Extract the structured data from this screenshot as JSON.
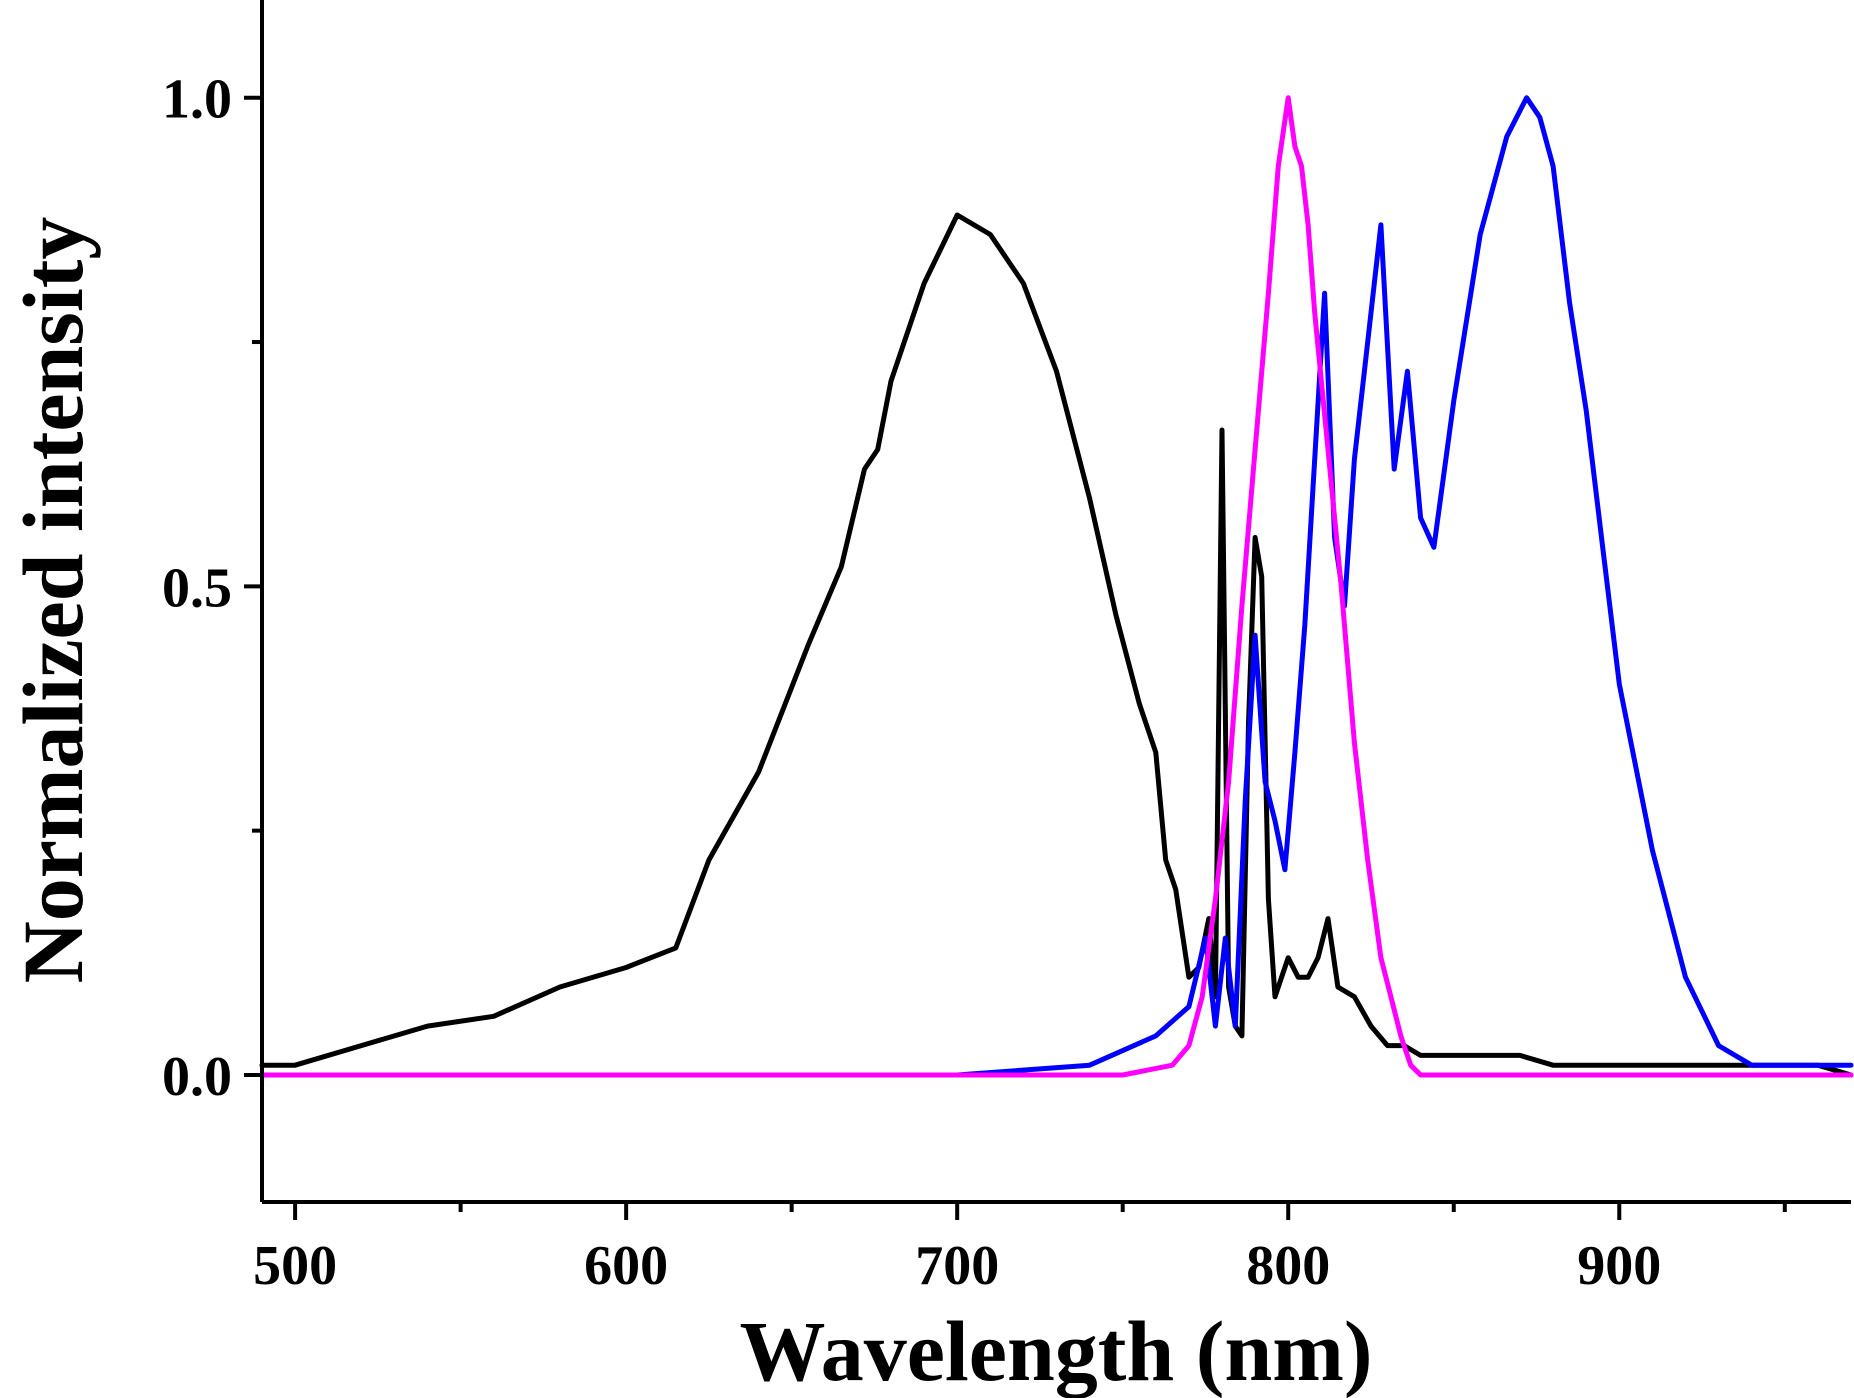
{
  "chart_data": {
    "type": "line",
    "title": "",
    "xlabel": "Wavelength (nm)",
    "ylabel": "Normalized intensity",
    "xlim": [
      490,
      970
    ],
    "ylim": [
      -0.13,
      1.1
    ],
    "x_ticks": [
      500,
      600,
      700,
      800,
      900
    ],
    "x_tick_labels": [
      "500",
      "600",
      "700",
      "800",
      "900"
    ],
    "x_minor_ticks": [
      550,
      650,
      750,
      850,
      950
    ],
    "y_ticks": [
      0.0,
      0.5,
      1.0
    ],
    "y_tick_labels": [
      "0.0",
      "0.5",
      "1.0"
    ],
    "y_minor_ticks": [
      0.25,
      0.75
    ],
    "grid": false,
    "legend": "none",
    "series": [
      {
        "name": "black",
        "color": "#000000",
        "x": [
          490,
          500,
          520,
          540,
          560,
          580,
          600,
          615,
          625,
          640,
          655,
          665,
          672,
          676,
          680,
          690,
          700,
          710,
          720,
          730,
          740,
          748,
          755,
          760,
          763,
          766,
          770,
          773,
          776,
          778,
          780,
          782,
          784,
          786,
          788,
          790,
          792,
          794,
          796,
          798,
          800,
          803,
          806,
          809,
          812,
          815,
          820,
          825,
          830,
          835,
          840,
          850,
          860,
          870,
          880,
          890,
          900,
          910,
          920,
          930,
          940,
          950,
          960,
          970
        ],
        "y": [
          0.01,
          0.01,
          0.03,
          0.05,
          0.06,
          0.09,
          0.11,
          0.13,
          0.22,
          0.31,
          0.44,
          0.52,
          0.62,
          0.64,
          0.71,
          0.81,
          0.88,
          0.86,
          0.81,
          0.72,
          0.59,
          0.47,
          0.38,
          0.33,
          0.22,
          0.19,
          0.1,
          0.11,
          0.16,
          0.08,
          0.66,
          0.09,
          0.05,
          0.04,
          0.36,
          0.55,
          0.51,
          0.18,
          0.08,
          0.1,
          0.12,
          0.1,
          0.1,
          0.12,
          0.16,
          0.09,
          0.08,
          0.05,
          0.03,
          0.03,
          0.02,
          0.02,
          0.02,
          0.02,
          0.01,
          0.01,
          0.01,
          0.01,
          0.01,
          0.01,
          0.01,
          0.01,
          0.01,
          0.0
        ]
      },
      {
        "name": "blue",
        "color": "#0000ff",
        "x": [
          490,
          600,
          700,
          740,
          760,
          770,
          775,
          778,
          781,
          784,
          787,
          790,
          793,
          796,
          799,
          802,
          805,
          808,
          811,
          814,
          817,
          820,
          824,
          828,
          832,
          836,
          840,
          844,
          850,
          858,
          866,
          872,
          876,
          880,
          885,
          890,
          895,
          900,
          910,
          920,
          930,
          940,
          950,
          960,
          970
        ],
        "y": [
          0.0,
          0.0,
          0.0,
          0.01,
          0.04,
          0.07,
          0.14,
          0.05,
          0.14,
          0.05,
          0.28,
          0.45,
          0.3,
          0.26,
          0.21,
          0.33,
          0.46,
          0.63,
          0.8,
          0.55,
          0.48,
          0.63,
          0.75,
          0.87,
          0.62,
          0.72,
          0.57,
          0.54,
          0.69,
          0.86,
          0.96,
          1.0,
          0.98,
          0.93,
          0.79,
          0.68,
          0.54,
          0.4,
          0.23,
          0.1,
          0.03,
          0.01,
          0.01,
          0.01,
          0.01
        ]
      },
      {
        "name": "magenta",
        "color": "#ff00ff",
        "x": [
          490,
          600,
          700,
          750,
          765,
          770,
          774,
          778,
          782,
          786,
          790,
          794,
          797,
          800,
          802,
          804,
          806,
          808,
          812,
          816,
          820,
          824,
          828,
          831,
          834,
          837,
          840,
          860,
          900,
          970
        ],
        "y": [
          0.0,
          0.0,
          0.0,
          0.0,
          0.01,
          0.03,
          0.08,
          0.18,
          0.3,
          0.48,
          0.64,
          0.8,
          0.93,
          1.0,
          0.95,
          0.93,
          0.87,
          0.78,
          0.64,
          0.5,
          0.34,
          0.22,
          0.12,
          0.08,
          0.04,
          0.01,
          0.0,
          0.0,
          0.0,
          0.0
        ]
      }
    ]
  }
}
